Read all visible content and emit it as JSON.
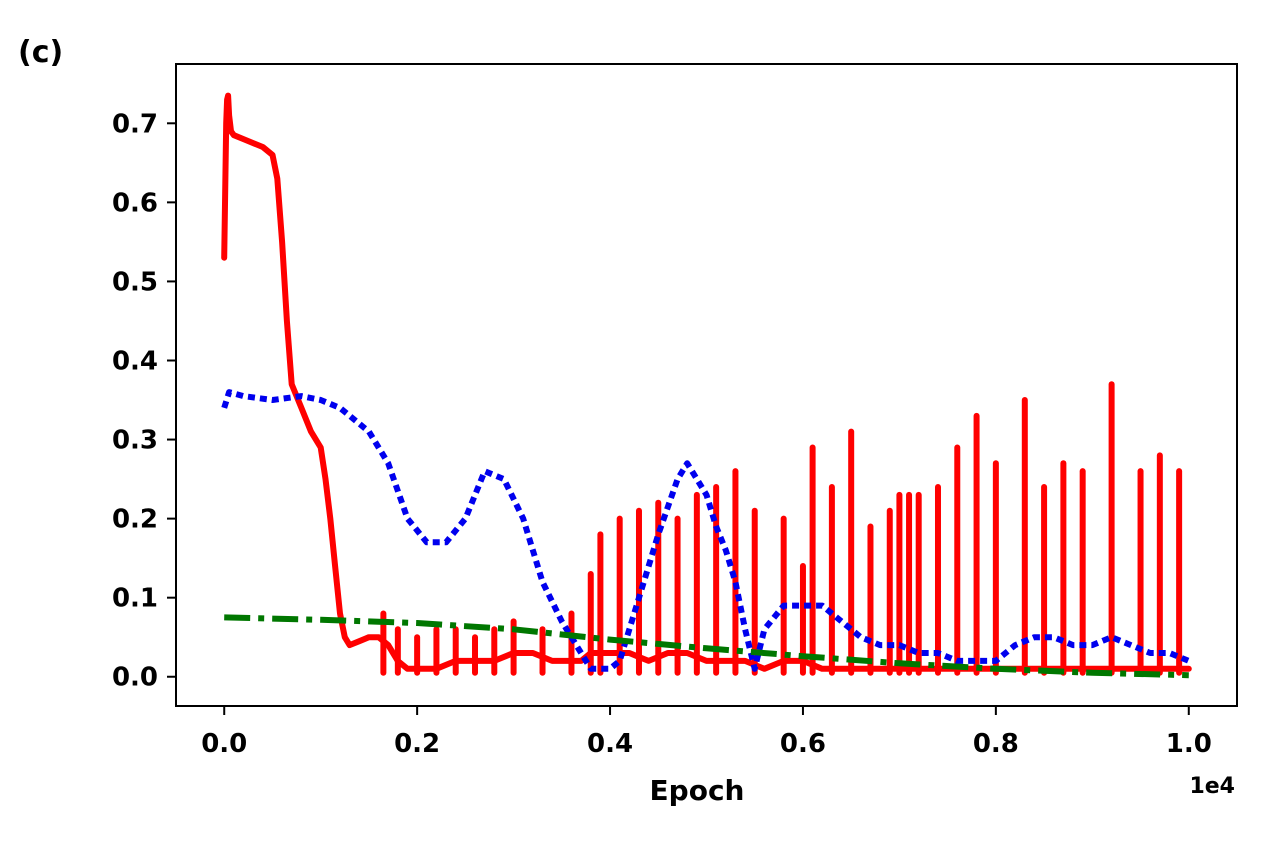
{
  "chart_data": {
    "type": "line",
    "panel_label": "(c)",
    "title": "",
    "xlabel": "Epoch",
    "ylabel": "",
    "x_offset_label": "1e4",
    "xlim": [
      -0.05,
      1.05
    ],
    "ylim": [
      -0.037,
      0.775
    ],
    "xticks": [
      0.0,
      0.2,
      0.4,
      0.6,
      0.8,
      1.0
    ],
    "xtick_labels": [
      "0.0",
      "0.2",
      "0.4",
      "0.6",
      "0.8",
      "1.0"
    ],
    "yticks": [
      0.0,
      0.1,
      0.2,
      0.3,
      0.4,
      0.5,
      0.6,
      0.7
    ],
    "ytick_labels": [
      "0.0",
      "0.1",
      "0.2",
      "0.3",
      "0.4",
      "0.5",
      "0.6",
      "0.7"
    ],
    "grid": false,
    "series": [
      {
        "name": "red-solid",
        "color": "#ff0000",
        "style": "solid",
        "x": [
          0.0,
          0.002,
          0.003,
          0.004,
          0.005,
          0.007,
          0.01,
          0.02,
          0.03,
          0.04,
          0.05,
          0.055,
          0.06,
          0.065,
          0.07,
          0.08,
          0.09,
          0.1,
          0.105,
          0.11,
          0.115,
          0.12,
          0.125,
          0.13,
          0.14,
          0.15,
          0.16,
          0.17,
          0.18,
          0.19,
          0.2,
          0.22,
          0.24,
          0.26,
          0.28,
          0.3,
          0.32,
          0.34,
          0.36,
          0.37,
          0.38,
          0.39,
          0.4,
          0.42,
          0.44,
          0.46,
          0.48,
          0.5,
          0.52,
          0.54,
          0.56,
          0.58,
          0.6,
          0.62,
          0.64,
          0.66,
          0.68,
          0.7,
          0.72,
          0.74,
          0.76,
          0.78,
          0.8,
          0.82,
          0.84,
          0.86,
          0.88,
          0.9,
          0.92,
          0.94,
          0.96,
          0.98,
          1.0
        ],
        "y": [
          0.53,
          0.7,
          0.73,
          0.735,
          0.71,
          0.69,
          0.685,
          0.68,
          0.675,
          0.67,
          0.66,
          0.63,
          0.55,
          0.45,
          0.37,
          0.34,
          0.31,
          0.29,
          0.25,
          0.2,
          0.14,
          0.08,
          0.05,
          0.04,
          0.045,
          0.05,
          0.05,
          0.04,
          0.02,
          0.01,
          0.01,
          0.01,
          0.02,
          0.02,
          0.02,
          0.03,
          0.03,
          0.02,
          0.02,
          0.02,
          0.03,
          0.03,
          0.03,
          0.03,
          0.02,
          0.03,
          0.03,
          0.02,
          0.02,
          0.02,
          0.01,
          0.02,
          0.02,
          0.01,
          0.01,
          0.01,
          0.01,
          0.01,
          0.01,
          0.01,
          0.01,
          0.01,
          0.01,
          0.01,
          0.01,
          0.01,
          0.01,
          0.01,
          0.01,
          0.01,
          0.01,
          0.01,
          0.01
        ]
      },
      {
        "name": "red-spikes",
        "color": "#ff0000",
        "style": "spikes",
        "x": [
          0.165,
          0.18,
          0.2,
          0.22,
          0.24,
          0.26,
          0.28,
          0.3,
          0.33,
          0.36,
          0.38,
          0.39,
          0.41,
          0.43,
          0.45,
          0.47,
          0.49,
          0.51,
          0.53,
          0.55,
          0.58,
          0.6,
          0.61,
          0.63,
          0.65,
          0.67,
          0.69,
          0.7,
          0.71,
          0.72,
          0.74,
          0.76,
          0.78,
          0.8,
          0.83,
          0.85,
          0.87,
          0.89,
          0.92,
          0.95,
          0.97,
          0.99
        ],
        "y": [
          0.08,
          0.06,
          0.05,
          0.06,
          0.06,
          0.05,
          0.06,
          0.07,
          0.06,
          0.08,
          0.13,
          0.18,
          0.2,
          0.21,
          0.22,
          0.2,
          0.23,
          0.24,
          0.26,
          0.21,
          0.2,
          0.14,
          0.29,
          0.24,
          0.31,
          0.19,
          0.21,
          0.23,
          0.23,
          0.23,
          0.24,
          0.29,
          0.33,
          0.27,
          0.35,
          0.24,
          0.27,
          0.26,
          0.37,
          0.26,
          0.28,
          0.26
        ]
      },
      {
        "name": "blue-dotted",
        "color": "#0000ee",
        "style": "dotted",
        "x": [
          0.0,
          0.005,
          0.02,
          0.05,
          0.08,
          0.1,
          0.12,
          0.15,
          0.17,
          0.19,
          0.21,
          0.23,
          0.25,
          0.27,
          0.29,
          0.31,
          0.33,
          0.35,
          0.37,
          0.38,
          0.39,
          0.4,
          0.41,
          0.43,
          0.45,
          0.47,
          0.48,
          0.5,
          0.51,
          0.52,
          0.53,
          0.54,
          0.55,
          0.56,
          0.58,
          0.6,
          0.62,
          0.64,
          0.66,
          0.68,
          0.7,
          0.72,
          0.74,
          0.76,
          0.78,
          0.8,
          0.82,
          0.84,
          0.86,
          0.88,
          0.9,
          0.92,
          0.94,
          0.96,
          0.98,
          1.0
        ],
        "y": [
          0.34,
          0.36,
          0.355,
          0.35,
          0.355,
          0.35,
          0.34,
          0.31,
          0.27,
          0.2,
          0.17,
          0.17,
          0.2,
          0.26,
          0.25,
          0.2,
          0.12,
          0.07,
          0.03,
          0.01,
          0.01,
          0.01,
          0.02,
          0.1,
          0.18,
          0.25,
          0.27,
          0.23,
          0.19,
          0.16,
          0.12,
          0.06,
          0.01,
          0.06,
          0.09,
          0.09,
          0.09,
          0.07,
          0.05,
          0.04,
          0.04,
          0.03,
          0.03,
          0.02,
          0.02,
          0.02,
          0.04,
          0.05,
          0.05,
          0.04,
          0.04,
          0.05,
          0.04,
          0.03,
          0.03,
          0.02
        ]
      },
      {
        "name": "green-dashdot",
        "color": "#007700",
        "style": "dashdot",
        "x": [
          0.0,
          0.1,
          0.2,
          0.3,
          0.4,
          0.5,
          0.6,
          0.7,
          0.8,
          0.9,
          1.0
        ],
        "y": [
          0.075,
          0.072,
          0.068,
          0.06,
          0.047,
          0.036,
          0.026,
          0.017,
          0.01,
          0.005,
          0.002
        ]
      }
    ]
  }
}
